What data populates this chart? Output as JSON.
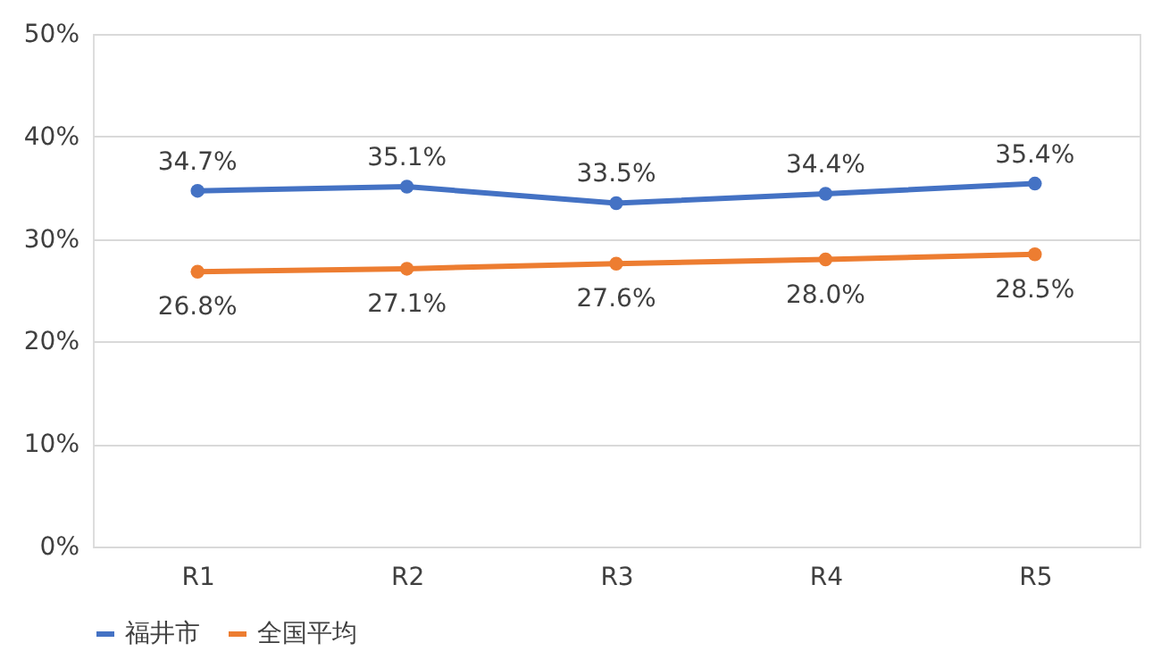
{
  "chart_data": {
    "type": "line",
    "categories": [
      "R1",
      "R2",
      "R3",
      "R4",
      "R5"
    ],
    "series": [
      {
        "name": "福井市",
        "color": "#4472c4",
        "values": [
          34.7,
          35.1,
          33.5,
          34.4,
          35.4
        ],
        "value_labels": [
          "34.7%",
          "35.1%",
          "33.5%",
          "34.4%",
          "35.4%"
        ]
      },
      {
        "name": "全国平均",
        "color": "#ed7d31",
        "values": [
          26.8,
          27.1,
          27.6,
          28.0,
          28.5
        ],
        "value_labels": [
          "26.8%",
          "27.1%",
          "27.6%",
          "28.0%",
          "28.5%"
        ]
      }
    ],
    "ylim": [
      0,
      50
    ],
    "yticks": [
      {
        "value": 0,
        "label": "0%"
      },
      {
        "value": 10,
        "label": "10%"
      },
      {
        "value": 20,
        "label": "20%"
      },
      {
        "value": 30,
        "label": "30%"
      },
      {
        "value": 40,
        "label": "40%"
      },
      {
        "value": 50,
        "label": "50%"
      }
    ],
    "grid": "y",
    "legend": "bottom",
    "marker": "circle",
    "line_style": "solid"
  }
}
